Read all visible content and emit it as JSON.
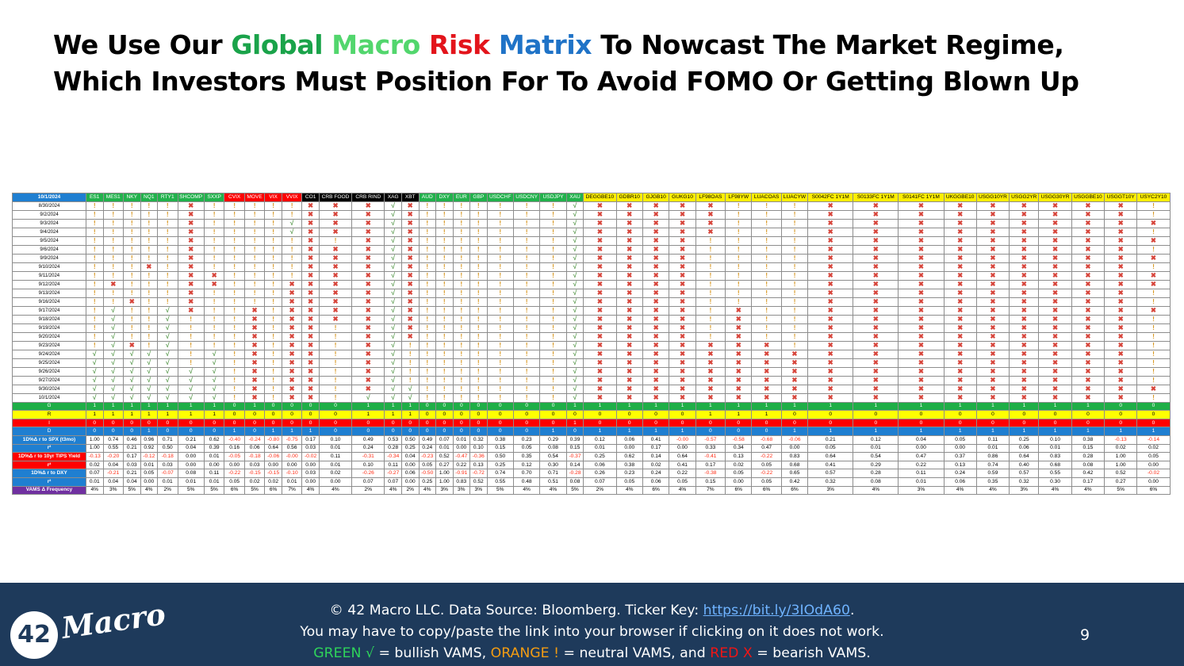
{
  "title": {
    "line1": {
      "pre": "We Use Our ",
      "w1": "Global",
      "w2": "Macro",
      "w3": "Risk",
      "w4": "Matrix",
      "post": " To Nowcast The Market Regime,"
    },
    "line2": "Which Investors Must Position For To Avoid FOMO Or Getting Blown Up"
  },
  "colors": {
    "global": "#1aa34a",
    "macro": "#52d66d",
    "risk": "#e3141b",
    "matrix": "#1f73c7",
    "header_green": "#22b14c",
    "header_red": "#ff0000",
    "header_black": "#000000",
    "header_yellow": "#ffee00",
    "row_g": "#1fae47",
    "row_r": "#ffff00",
    "row_i": "#ff0000",
    "row_d": "#1f7fd1",
    "row_label_purple": "#7030a0",
    "bullish": "#5b9b4f",
    "neutral": "#d99a28",
    "bearish": "#d7453b"
  },
  "icon_legend": {
    "G": "check-icon",
    "O": "exclamation-icon",
    "X": "x-icon"
  },
  "matrix": {
    "corner": "10/1/2024",
    "columns": [
      {
        "t": "ES1",
        "c": "g"
      },
      {
        "t": "MES1",
        "c": "g"
      },
      {
        "t": "NKY",
        "c": "g"
      },
      {
        "t": "NQ1",
        "c": "g"
      },
      {
        "t": "RTY1",
        "c": "g"
      },
      {
        "t": "SHCOMP",
        "c": "g"
      },
      {
        "t": "SXXP",
        "c": "g"
      },
      {
        "t": "CVIX",
        "c": "r"
      },
      {
        "t": "MOVE",
        "c": "r"
      },
      {
        "t": "VIX",
        "c": "r"
      },
      {
        "t": "VVIX",
        "c": "r"
      },
      {
        "t": "CO1",
        "c": "k"
      },
      {
        "t": "CRB FOOD",
        "c": "k"
      },
      {
        "t": "CRB RIND",
        "c": "k"
      },
      {
        "t": "XAG",
        "c": "k"
      },
      {
        "t": "XBT",
        "c": "k"
      },
      {
        "t": "AUD",
        "c": "g"
      },
      {
        "t": "DXY",
        "c": "g"
      },
      {
        "t": "EUR",
        "c": "g"
      },
      {
        "t": "GBP",
        "c": "g"
      },
      {
        "t": "USDCHF",
        "c": "g"
      },
      {
        "t": "USDCNY",
        "c": "g"
      },
      {
        "t": "USDJPY",
        "c": "g"
      },
      {
        "t": "XAU",
        "c": "g"
      },
      {
        "t": "DEGGBE10",
        "c": "y"
      },
      {
        "t": "GDBR10",
        "c": "y"
      },
      {
        "t": "GJGB10",
        "c": "y"
      },
      {
        "t": "GUKG10",
        "c": "y"
      },
      {
        "t": "LF98OAS",
        "c": "y"
      },
      {
        "t": "LF98YW",
        "c": "y"
      },
      {
        "t": "LUACOAS",
        "c": "y"
      },
      {
        "t": "LUACYW",
        "c": "y"
      },
      {
        "t": "S0042FC 1Y1M",
        "c": "y"
      },
      {
        "t": "S0133FC 1Y1M",
        "c": "y"
      },
      {
        "t": "S0141FC 1Y1M",
        "c": "y"
      },
      {
        "t": "UKGGBE10",
        "c": "y"
      },
      {
        "t": "USGG10YR",
        "c": "y"
      },
      {
        "t": "USGG2YR",
        "c": "y"
      },
      {
        "t": "USGG30YR",
        "c": "y"
      },
      {
        "t": "USGGBE10",
        "c": "y"
      },
      {
        "t": "USGGT10Y",
        "c": "y"
      },
      {
        "t": "USYC2Y10",
        "c": "y"
      }
    ],
    "dates": [
      "8/30/2024",
      "9/2/2024",
      "9/3/2024",
      "9/4/2024",
      "9/5/2024",
      "9/6/2024",
      "9/9/2024",
      "9/10/2024",
      "9/11/2024",
      "9/12/2024",
      "9/13/2024",
      "9/16/2024",
      "9/17/2024",
      "9/18/2024",
      "9/19/2024",
      "9/20/2024",
      "9/23/2024",
      "9/24/2024",
      "9/25/2024",
      "9/26/2024",
      "9/27/2024",
      "9/30/2024",
      "10/1/2024"
    ],
    "signals": [
      "OOOOOXOOOOOXXXGXOOOOOOOGXXXXXOOOXXXXXXXXXO",
      "OOOOOXOOOOOXXXGXOOOOOOOGXXXXXOOOXXXXXXXXXO",
      "OOOOOXOOOOGXXXGXOOOOOOOGXXXXXOOOXXXXXXXXXX",
      "OOOOOXOOOOGXXXGXOOOOOOOGXXXXXOOOXXXXXXXXXO",
      "OOOOOXOOOOOXOXGXOOOOOOOGXXXXOOOOXXXXXXXXXX",
      "OOOOOXOOOOOXXXGXOOOOOOOGXXXXOOOOXXXXXXXXXO",
      "OOOOOXOOOOOXXXGXOOOOOOOGXXXXOOOOXXXXXXXXXX",
      "OOOXOXOOOOOXXXGXOOOOOOOGXXXXOOOOXXXXXXXXXO",
      "OOOOOXXOOOOXXXGXOOOOOOOGXXXXOOOOXXXXXXXXXX",
      "OXOOOXXOOOXXXXGXOOOOOOOGXXXXOOOOXXXXXXXXXX",
      "OOOOOXOOOOXXXXGXOOOOOOOGXXXXOOOOXXXXXXXXXO",
      "OOXOOXOOOOXXXXGXOOOOOOOGXXXXOOOOXXXXXXXXXO",
      "OGOOGXOOXOXXXXGXOOOOOOOGXXXXOXOOXXXXXXXXXX",
      "OGOOGOOOXOXXXXGXOOOOOOOGXXXXOXOOXXXXXXXXXO",
      "OGOOGOOOXOXXOXGXOOOOOOOGXXXXOXOOXXXXXXXXXO",
      "OGOOGOOOXOXXOXGXOOOOOOOGXXXXOXOOXXXXXXXXXO",
      "OGXOGOOOXOXXOXGOOOOOOOOGXXXXXXXOXXXXXXXXXO",
      "GGGGGOGOXOXXOXGOOOOOOOOGXXXXXXXXXXXXXXXXXO",
      "GGGGGOGOXOXXOXGOOOOOOOOGXXXXXXXXXXXXXXXXXO",
      "GGGGGGGOXOXXOXGOOOOOOOOGXXXXXXXXXXXXXXXXXO",
      "GGGGGGGOXOXXOXGOOOOOOOOGXXXXXXXXXXXXXXXXXO",
      "GGGGGGGOXOXXOXGGOOOOOOOGXXXXXXXXXXXXXXXXXX",
      "GGGGGGGOXOXXOGGGOOOOOOOGXXXXXXXXXXXXXXXXXO"
    ],
    "regime_rows": [
      {
        "label": "G",
        "bg": "#1fae47",
        "fg": "#ffffff",
        "values": [
          "1",
          "1",
          "1",
          "1",
          "1",
          "1",
          "1",
          "0",
          "1",
          "0",
          "0",
          "0",
          "0",
          "1",
          "1",
          "1",
          "0",
          "0",
          "0",
          "0",
          "0",
          "0",
          "0",
          "1",
          "1",
          "1",
          "1",
          "1",
          "1",
          "1",
          "1",
          "1",
          "1",
          "1",
          "1",
          "1",
          "1",
          "1",
          "1",
          "1",
          "0",
          "0"
        ]
      },
      {
        "label": "R",
        "bg": "#ffff00",
        "fg": "#000000",
        "values": [
          "1",
          "1",
          "1",
          "1",
          "1",
          "1",
          "1",
          "0",
          "0",
          "0",
          "0",
          "0",
          "0",
          "1",
          "1",
          "1",
          "0",
          "0",
          "0",
          "0",
          "0",
          "0",
          "0",
          "0",
          "0",
          "0",
          "0",
          "0",
          "1",
          "1",
          "1",
          "0",
          "0",
          "0",
          "0",
          "0",
          "0",
          "0",
          "0",
          "0",
          "0",
          "0"
        ]
      },
      {
        "label": "I",
        "bg": "#ff0000",
        "fg": "#ffffff",
        "values": [
          "0",
          "0",
          "0",
          "0",
          "0",
          "0",
          "0",
          "0",
          "0",
          "0",
          "0",
          "0",
          "0",
          "0",
          "0",
          "0",
          "0",
          "0",
          "0",
          "0",
          "0",
          "0",
          "0",
          "1",
          "0",
          "0",
          "0",
          "0",
          "0",
          "0",
          "0",
          "0",
          "0",
          "0",
          "0",
          "0",
          "0",
          "0",
          "0",
          "0",
          "0",
          "0"
        ]
      },
      {
        "label": "D",
        "bg": "#1f7fd1",
        "fg": "#ffffff",
        "values": [
          "0",
          "0",
          "0",
          "1",
          "0",
          "0",
          "0",
          "1",
          "0",
          "1",
          "1",
          "1",
          "0",
          "0",
          "0",
          "0",
          "0",
          "0",
          "0",
          "0",
          "0",
          "0",
          "1",
          "0",
          "1",
          "1",
          "1",
          "1",
          "0",
          "0",
          "0",
          "1",
          "1",
          "1",
          "1",
          "1",
          "1",
          "1",
          "1",
          "1",
          "1",
          "1"
        ]
      }
    ],
    "stat_rows": [
      {
        "label": "1D%Δ r to SPX (t3mo)",
        "bg": "#1f7fd1",
        "fg": "#ffffff",
        "values": [
          "1.00",
          "0.74",
          "0.46",
          "0.96",
          "0.71",
          "0.21",
          "0.62",
          "-0.40",
          "-0.24",
          "-0.80",
          "-0.75",
          "0.17",
          "0.10",
          "0.49",
          "0.53",
          "0.50",
          "0.49",
          "0.07",
          "0.01",
          "0.32",
          "0.38",
          "0.23",
          "0.29",
          "0.39",
          "0.12",
          "0.06",
          "0.41",
          "-0.00",
          "-0.57",
          "-0.58",
          "-0.68",
          "-0.06",
          "0.21",
          "0.12",
          "0.04",
          "0.05",
          "0.11",
          "0.25",
          "0.10",
          "0.38",
          "-0.13",
          "-0.14"
        ]
      },
      {
        "label": "r²",
        "bg": "#1f7fd1",
        "fg": "#ffffff",
        "values": [
          "1.00",
          "0.55",
          "0.21",
          "0.92",
          "0.50",
          "0.04",
          "0.39",
          "0.16",
          "0.06",
          "0.64",
          "0.56",
          "0.03",
          "0.01",
          "0.24",
          "0.28",
          "0.25",
          "0.24",
          "0.01",
          "0.00",
          "0.10",
          "0.15",
          "0.05",
          "0.08",
          "0.15",
          "0.01",
          "0.00",
          "0.17",
          "0.00",
          "0.33",
          "0.34",
          "0.47",
          "0.00",
          "0.05",
          "0.01",
          "0.00",
          "0.00",
          "0.01",
          "0.06",
          "0.01",
          "0.15",
          "0.02",
          "0.02"
        ]
      },
      {
        "label": "1D%Δ r to 10yr TIPS Yield",
        "bg": "#ff0000",
        "fg": "#ffffff",
        "values": [
          "-0.13",
          "-0.20",
          "0.17",
          "-0.12",
          "-0.18",
          "0.00",
          "0.01",
          "-0.05",
          "-0.18",
          "-0.06",
          "-0.00",
          "-0.02",
          "0.11",
          "-0.31",
          "-0.34",
          "0.04",
          "-0.23",
          "0.52",
          "-0.47",
          "-0.36",
          "0.50",
          "0.35",
          "0.54",
          "-0.37",
          "0.25",
          "0.62",
          "0.14",
          "0.64",
          "-0.41",
          "0.13",
          "-0.22",
          "0.83",
          "0.64",
          "0.54",
          "0.47",
          "0.37",
          "0.86",
          "0.64",
          "0.83",
          "0.28",
          "1.00",
          "0.05"
        ]
      },
      {
        "label": "r²",
        "bg": "#ff0000",
        "fg": "#ffffff",
        "values": [
          "0.02",
          "0.04",
          "0.03",
          "0.01",
          "0.03",
          "0.00",
          "0.00",
          "0.00",
          "0.03",
          "0.00",
          "0.00",
          "0.00",
          "0.01",
          "0.10",
          "0.11",
          "0.00",
          "0.05",
          "0.27",
          "0.22",
          "0.13",
          "0.25",
          "0.12",
          "0.30",
          "0.14",
          "0.06",
          "0.38",
          "0.02",
          "0.41",
          "0.17",
          "0.02",
          "0.05",
          "0.68",
          "0.41",
          "0.29",
          "0.22",
          "0.13",
          "0.74",
          "0.40",
          "0.68",
          "0.08",
          "1.00",
          "0.00"
        ]
      },
      {
        "label": "1D%Δ r to DXY",
        "bg": "#1f7fd1",
        "fg": "#ffffff",
        "values": [
          "0.07",
          "-0.21",
          "0.21",
          "0.05",
          "-0.07",
          "0.08",
          "0.11",
          "-0.22",
          "-0.15",
          "-0.15",
          "-0.10",
          "0.03",
          "0.02",
          "-0.26",
          "-0.27",
          "0.06",
          "-0.50",
          "1.00",
          "-0.91",
          "-0.72",
          "0.74",
          "0.70",
          "0.71",
          "-0.28",
          "0.26",
          "0.23",
          "0.24",
          "0.22",
          "-0.38",
          "0.05",
          "-0.22",
          "0.65",
          "0.57",
          "0.28",
          "0.11",
          "0.24",
          "0.59",
          "0.57",
          "0.55",
          "0.42",
          "0.52",
          "-0.02"
        ]
      },
      {
        "label": "r²",
        "bg": "#1f7fd1",
        "fg": "#ffffff",
        "values": [
          "0.01",
          "0.04",
          "0.04",
          "0.00",
          "0.01",
          "0.01",
          "0.01",
          "0.05",
          "0.02",
          "0.02",
          "0.01",
          "0.00",
          "0.00",
          "0.07",
          "0.07",
          "0.00",
          "0.25",
          "1.00",
          "0.83",
          "0.52",
          "0.55",
          "0.48",
          "0.51",
          "0.08",
          "0.07",
          "0.05",
          "0.06",
          "0.05",
          "0.15",
          "0.00",
          "0.05",
          "0.42",
          "0.32",
          "0.08",
          "0.01",
          "0.06",
          "0.35",
          "0.32",
          "0.30",
          "0.17",
          "0.27",
          "0.00"
        ]
      },
      {
        "label": "VAMS Δ Frequency",
        "bg": "#7030a0",
        "fg": "#ffffff",
        "values": [
          "4%",
          "3%",
          "5%",
          "4%",
          "2%",
          "5%",
          "5%",
          "6%",
          "5%",
          "6%",
          "7%",
          "4%",
          "4%",
          "2%",
          "4%",
          "2%",
          "4%",
          "3%",
          "3%",
          "3%",
          "5%",
          "4%",
          "4%",
          "5%",
          "2%",
          "4%",
          "6%",
          "4%",
          "7%",
          "6%",
          "6%",
          "6%",
          "3%",
          "4%",
          "3%",
          "4%",
          "4%",
          "3%",
          "4%",
          "4%",
          "5%",
          "6%"
        ]
      }
    ]
  },
  "footer": {
    "line1_pre": "© 42 Macro LLC. Data Source: Bloomberg. Ticker Key: ",
    "link": "https://bit.ly/3IOdA60",
    "line1_post": ".",
    "line2": "You may have to copy/paste the link into your browser if clicking on it does not work.",
    "line3": {
      "green": "GREEN √",
      "green_desc": " = bullish VAMS, ",
      "orange": "ORANGE !",
      "orange_desc": " = neutral VAMS, and ",
      "red": "RED X",
      "red_desc": " = bearish VAMS."
    },
    "page_number": "9",
    "logo_number": "42",
    "logo_word": "Macro"
  }
}
